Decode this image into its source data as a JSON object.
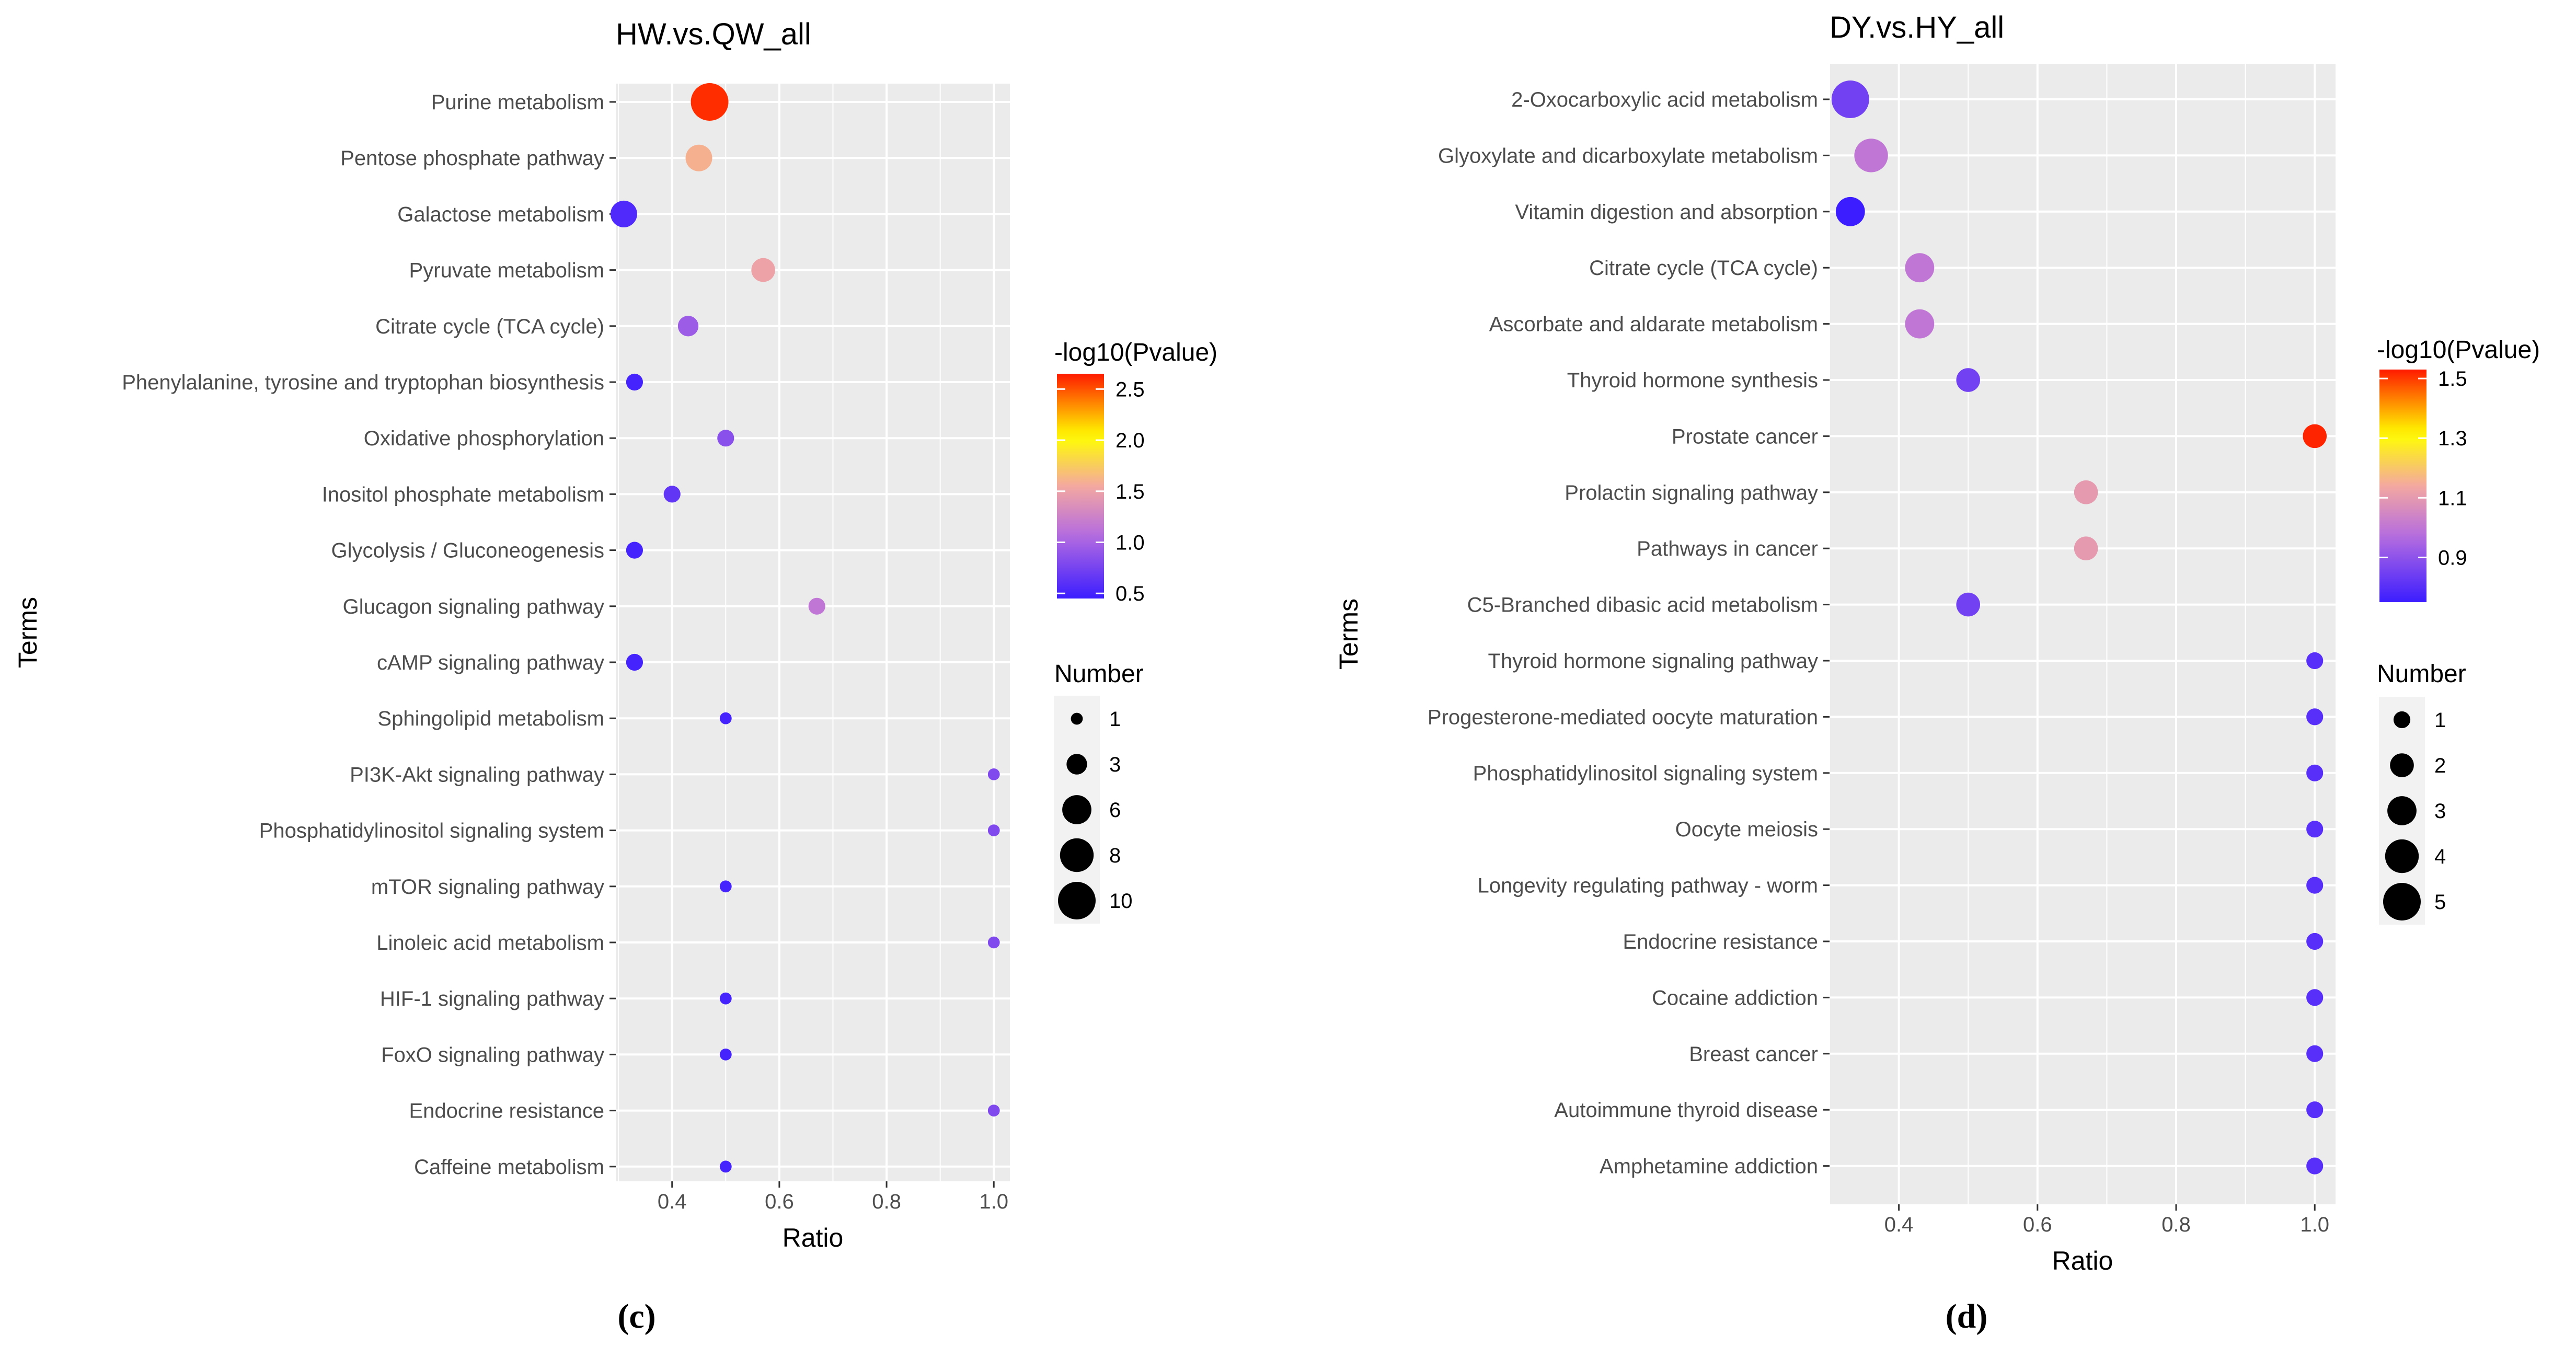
{
  "chart_data": [
    {
      "type": "scatter",
      "title": "HW.vs.QW_all",
      "caption": "(c)",
      "xlabel": "Ratio",
      "ylabel": "Terms",
      "xlim": [
        0.295,
        1.03
      ],
      "xticks": [
        0.4,
        0.6,
        0.8,
        1.0
      ],
      "xtick_labels": [
        "0.4",
        "0.6",
        "0.8",
        "1.0"
      ],
      "color_legend": {
        "title": "-log10(Pvalue)",
        "range": [
          0.45,
          2.65
        ],
        "ticks": [
          0.5,
          1.0,
          1.5,
          2.0,
          2.5
        ],
        "tick_labels": [
          "0.5",
          "1.0",
          "1.5",
          "2.0",
          "2.5"
        ]
      },
      "size_legend": {
        "title": "Number",
        "values": [
          1,
          3,
          6,
          8,
          10
        ],
        "labels": [
          "1",
          "3",
          "6",
          "8",
          "10"
        ],
        "max": 10
      },
      "points": [
        {
          "term": "Purine metabolism",
          "ratio": 0.47,
          "number": 10,
          "neglog10p": 2.6
        },
        {
          "term": "Pentose phosphate pathway",
          "ratio": 0.45,
          "number": 5,
          "neglog10p": 1.6
        },
        {
          "term": "Galactose metabolism",
          "ratio": 0.31,
          "number": 5,
          "neglog10p": 0.55
        },
        {
          "term": "Pyruvate metabolism",
          "ratio": 0.57,
          "number": 4,
          "neglog10p": 1.5
        },
        {
          "term": "Citrate cycle (TCA cycle)",
          "ratio": 0.43,
          "number": 3,
          "neglog10p": 0.95
        },
        {
          "term": "Phenylalanine, tyrosine and tryptophan biosynthesis",
          "ratio": 0.33,
          "number": 2,
          "neglog10p": 0.5
        },
        {
          "term": "Oxidative phosphorylation",
          "ratio": 0.5,
          "number": 2,
          "neglog10p": 0.85
        },
        {
          "term": "Inositol phosphate metabolism",
          "ratio": 0.4,
          "number": 2,
          "neglog10p": 0.65
        },
        {
          "term": "Glycolysis / Gluconeogenesis",
          "ratio": 0.33,
          "number": 2,
          "neglog10p": 0.5
        },
        {
          "term": "Glucagon signaling pathway",
          "ratio": 0.67,
          "number": 2,
          "neglog10p": 1.15
        },
        {
          "term": "cAMP signaling pathway",
          "ratio": 0.33,
          "number": 2,
          "neglog10p": 0.5
        },
        {
          "term": "Sphingolipid metabolism",
          "ratio": 0.5,
          "number": 1,
          "neglog10p": 0.5
        },
        {
          "term": "PI3K-Akt signaling pathway",
          "ratio": 1.0,
          "number": 1,
          "neglog10p": 0.8
        },
        {
          "term": "Phosphatidylinositol signaling system",
          "ratio": 1.0,
          "number": 1,
          "neglog10p": 0.8
        },
        {
          "term": "mTOR signaling pathway",
          "ratio": 0.5,
          "number": 1,
          "neglog10p": 0.5
        },
        {
          "term": "Linoleic acid metabolism",
          "ratio": 1.0,
          "number": 1,
          "neglog10p": 0.8
        },
        {
          "term": "HIF-1 signaling pathway",
          "ratio": 0.5,
          "number": 1,
          "neglog10p": 0.5
        },
        {
          "term": "FoxO signaling pathway",
          "ratio": 0.5,
          "number": 1,
          "neglog10p": 0.5
        },
        {
          "term": "Endocrine resistance",
          "ratio": 1.0,
          "number": 1,
          "neglog10p": 0.8
        },
        {
          "term": "Caffeine metabolism",
          "ratio": 0.5,
          "number": 1,
          "neglog10p": 0.5
        }
      ]
    },
    {
      "type": "scatter",
      "title": "DY.vs.HY_all",
      "caption": "(d)",
      "xlabel": "Ratio",
      "ylabel": "Terms",
      "xlim": [
        0.3,
        1.03
      ],
      "xticks": [
        0.4,
        0.6,
        0.8,
        1.0
      ],
      "xtick_labels": [
        "0.4",
        "0.6",
        "0.8",
        "1.0"
      ],
      "color_legend": {
        "title": "-log10(Pvalue)",
        "range": [
          0.75,
          1.53
        ],
        "ticks": [
          0.9,
          1.1,
          1.3,
          1.5
        ],
        "tick_labels": [
          "0.9",
          "1.1",
          "1.3",
          "1.5"
        ]
      },
      "size_legend": {
        "title": "Number",
        "values": [
          1,
          2,
          3,
          4,
          5
        ],
        "labels": [
          "1",
          "2",
          "3",
          "4",
          "5"
        ],
        "max": 5
      },
      "points": [
        {
          "term": "2-Oxocarboxylic acid metabolism",
          "ratio": 0.33,
          "number": 5,
          "neglog10p": 0.85
        },
        {
          "term": "Glyoxylate and dicarboxylate metabolism",
          "ratio": 0.36,
          "number": 4,
          "neglog10p": 1.0
        },
        {
          "term": "Vitamin digestion and absorption",
          "ratio": 0.33,
          "number": 3,
          "neglog10p": 0.75
        },
        {
          "term": "Citrate cycle (TCA cycle)",
          "ratio": 0.43,
          "number": 3,
          "neglog10p": 1.0
        },
        {
          "term": "Ascorbate and aldarate metabolism",
          "ratio": 0.43,
          "number": 3,
          "neglog10p": 1.0
        },
        {
          "term": "Thyroid hormone synthesis",
          "ratio": 0.5,
          "number": 2,
          "neglog10p": 0.85
        },
        {
          "term": "Prostate cancer",
          "ratio": 1.0,
          "number": 2,
          "neglog10p": 1.52
        },
        {
          "term": "Prolactin signaling pathway",
          "ratio": 0.67,
          "number": 2,
          "neglog10p": 1.1
        },
        {
          "term": "Pathways in cancer",
          "ratio": 0.67,
          "number": 2,
          "neglog10p": 1.1
        },
        {
          "term": "C5-Branched dibasic acid metabolism",
          "ratio": 0.5,
          "number": 2,
          "neglog10p": 0.85
        },
        {
          "term": "Thyroid hormone signaling pathway",
          "ratio": 1.0,
          "number": 1,
          "neglog10p": 0.8
        },
        {
          "term": "Progesterone-mediated oocyte maturation",
          "ratio": 1.0,
          "number": 1,
          "neglog10p": 0.8
        },
        {
          "term": "Phosphatidylinositol signaling system",
          "ratio": 1.0,
          "number": 1,
          "neglog10p": 0.8
        },
        {
          "term": "Oocyte meiosis",
          "ratio": 1.0,
          "number": 1,
          "neglog10p": 0.8
        },
        {
          "term": "Longevity regulating pathway - worm",
          "ratio": 1.0,
          "number": 1,
          "neglog10p": 0.8
        },
        {
          "term": "Endocrine resistance",
          "ratio": 1.0,
          "number": 1,
          "neglog10p": 0.8
        },
        {
          "term": "Cocaine addiction",
          "ratio": 1.0,
          "number": 1,
          "neglog10p": 0.8
        },
        {
          "term": "Breast cancer",
          "ratio": 1.0,
          "number": 1,
          "neglog10p": 0.8
        },
        {
          "term": "Autoimmune thyroid disease",
          "ratio": 1.0,
          "number": 1,
          "neglog10p": 0.8
        },
        {
          "term": "Amphetamine addiction",
          "ratio": 1.0,
          "number": 1,
          "neglog10p": 0.8
        }
      ]
    }
  ],
  "colors": {
    "panel_background": "#ebebeb",
    "grid": "#ffffff",
    "scale_low": "#3b1dff",
    "scale_mid_low": "#b46be0",
    "scale_mid": "#f4a8a0",
    "scale_mid_high": "#ffff00",
    "scale_high": "#ff1a00",
    "legend_point": "#000000"
  }
}
